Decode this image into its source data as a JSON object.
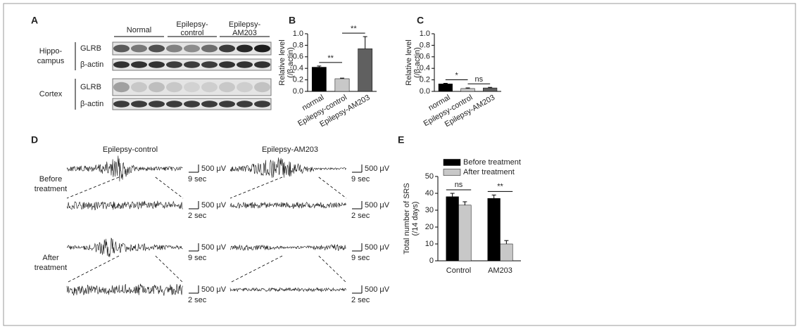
{
  "panel_a": {
    "label": "A",
    "groups": [
      [
        "Normal"
      ],
      [
        "Epilepsy-",
        "control"
      ],
      [
        "Epilepsy-",
        "AM203"
      ]
    ],
    "regions": [
      {
        "name": [
          "Hippo-",
          "campus"
        ],
        "rows": [
          "GLRB",
          "β-actin"
        ]
      },
      {
        "name": [
          "Cortex"
        ],
        "rows": [
          "GLRB",
          "β-actin"
        ]
      }
    ]
  },
  "panel_d": {
    "label": "D",
    "columns": [
      "Epilepsy-control",
      "Epilepsy-AM203"
    ],
    "rows": [
      [
        "Before",
        "treatment"
      ],
      [
        "After",
        "treatment"
      ]
    ],
    "scale_bars": [
      [
        {
          "amplitude": "500 μV",
          "time": "9 sec"
        },
        {
          "amplitude": "500 μV",
          "time": "2 sec"
        }
      ],
      [
        {
          "amplitude": "500 μV",
          "time": "9 sec"
        },
        {
          "amplitude": "500 μV",
          "time": "2 sec"
        }
      ],
      [
        {
          "amplitude": "500 μV",
          "time": "9 sec"
        },
        {
          "amplitude": "500 μV",
          "time": "2 sec"
        }
      ],
      [
        {
          "amplitude": "500 μV",
          "time": "9 sec"
        },
        {
          "amplitude": "500 μV",
          "time": "2 sec"
        }
      ]
    ]
  },
  "chart_data": [
    {
      "type": "bar",
      "panel_label": "B",
      "y_label": [
        "Relative level",
        "(/β-actin)"
      ],
      "categories": [
        "normal",
        "Epilepsy-control",
        "Epilepsy-AM203"
      ],
      "values": [
        0.42,
        0.22,
        0.74
      ],
      "errors": [
        0.02,
        0.01,
        0.21
      ],
      "colors": [
        "#000000",
        "#c8c8c8",
        "#606060"
      ],
      "ylim": [
        0,
        1.0
      ],
      "yticks": [
        {
          "value": 0,
          "label": "0.0"
        },
        0.2,
        0.4,
        0.6,
        0.8,
        {
          "value": 1.0,
          "label": "1.0"
        }
      ],
      "annotations": [
        "**",
        "**"
      ]
    },
    {
      "type": "bar",
      "panel_label": "C",
      "y_label": [
        "Relative level",
        "(/β-actin)"
      ],
      "categories": [
        "normal",
        "Epilepsy-control",
        "Epilepsy-AM203"
      ],
      "values": [
        0.13,
        0.05,
        0.06
      ],
      "errors": [
        0.01,
        0.01,
        0.01
      ],
      "colors": [
        "#000000",
        "#c8c8c8",
        "#606060"
      ],
      "ylim": [
        0,
        1.0
      ],
      "yticks": [
        {
          "value": 0,
          "label": "0.0"
        },
        0.2,
        0.4,
        0.6,
        0.8,
        {
          "value": 1.0,
          "label": "1.0"
        }
      ],
      "annotations": [
        "*",
        "ns"
      ]
    },
    {
      "type": "grouped_bar",
      "panel_label": "E",
      "y_label": [
        "Total number of SRS",
        "(/14 days)"
      ],
      "categories": [
        "Control",
        "AM203"
      ],
      "series": [
        {
          "name": "Before treatment",
          "color": "#000000",
          "values": [
            38,
            37
          ],
          "errors": [
            2,
            2
          ]
        },
        {
          "name": "After treatment",
          "color": "#c8c8c8",
          "values": [
            33,
            10
          ],
          "errors": [
            2,
            2
          ]
        }
      ],
      "ylim": [
        0,
        50
      ],
      "yticks": [
        0,
        10,
        20,
        30,
        40,
        50
      ],
      "group_annotations": [
        "ns",
        "**"
      ]
    }
  ]
}
